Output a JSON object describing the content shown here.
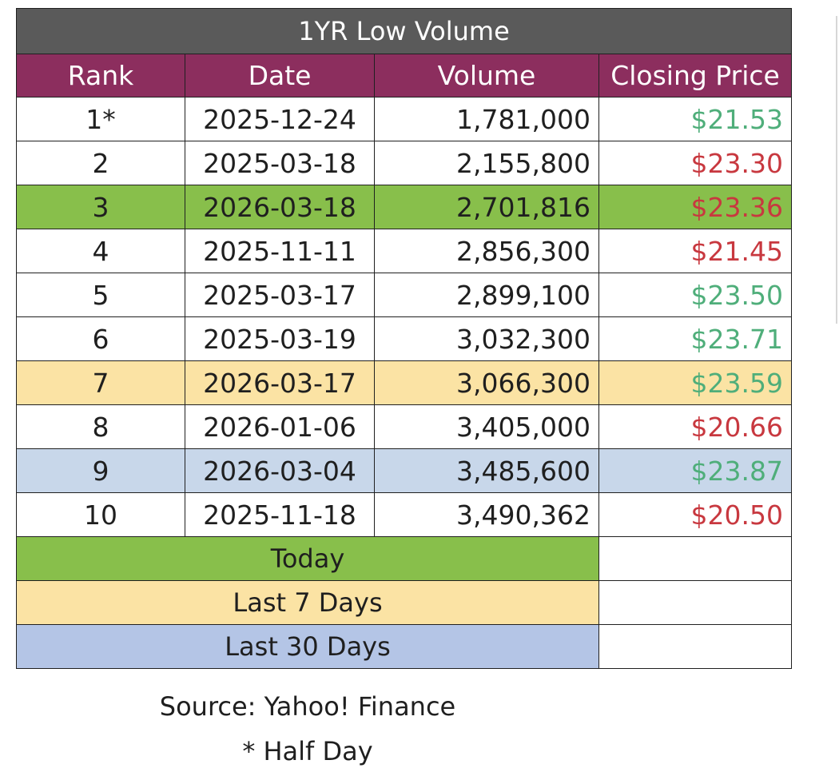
{
  "table": {
    "title": "1YR Low Volume",
    "headers": {
      "rank": "Rank",
      "date": "Date",
      "volume": "Volume",
      "price": "Closing Price"
    },
    "rows": [
      {
        "rank": "1*",
        "date": "2025-12-24",
        "volume": "1,781,000",
        "price": "$21.53",
        "price_color": "#4fae7a",
        "highlight": null
      },
      {
        "rank": "2",
        "date": "2025-03-18",
        "volume": "2,155,800",
        "price": "$23.30",
        "price_color": "#c8383f",
        "highlight": null
      },
      {
        "rank": "3",
        "date": "2026-03-18",
        "volume": "2,701,816",
        "price": "$23.36",
        "price_color": "#c8383f",
        "highlight": "today"
      },
      {
        "rank": "4",
        "date": "2025-11-11",
        "volume": "2,856,300",
        "price": "$21.45",
        "price_color": "#c8383f",
        "highlight": null
      },
      {
        "rank": "5",
        "date": "2025-03-17",
        "volume": "2,899,100",
        "price": "$23.50",
        "price_color": "#4fae7a",
        "highlight": null
      },
      {
        "rank": "6",
        "date": "2025-03-19",
        "volume": "3,032,300",
        "price": "$23.71",
        "price_color": "#4fae7a",
        "highlight": null
      },
      {
        "rank": "7",
        "date": "2026-03-17",
        "volume": "3,066,300",
        "price": "$23.59",
        "price_color": "#4fae7a",
        "highlight": "last7"
      },
      {
        "rank": "8",
        "date": "2026-01-06",
        "volume": "3,405,000",
        "price": "$20.66",
        "price_color": "#c8383f",
        "highlight": null
      },
      {
        "rank": "9",
        "date": "2026-03-04",
        "volume": "3,485,600",
        "price": "$23.87",
        "price_color": "#4fae7a",
        "highlight": "last30"
      },
      {
        "rank": "10",
        "date": "2025-11-18",
        "volume": "3,490,362",
        "price": "$20.50",
        "price_color": "#c8383f",
        "highlight": null
      }
    ]
  },
  "legend": {
    "today": "Today",
    "last7": "Last 7 Days",
    "last30": "Last 30 Days"
  },
  "colors": {
    "title_bg": "#5a5a5a",
    "header_bg": "#8c2e5e",
    "today": "#88bf4b",
    "last7": "#fbe3a4",
    "last30": "#c8d7ea",
    "price_up": "#4fae7a",
    "price_down": "#c8383f"
  },
  "notes": {
    "source": "Source: Yahoo! Finance",
    "footnote": "* Half Day"
  }
}
